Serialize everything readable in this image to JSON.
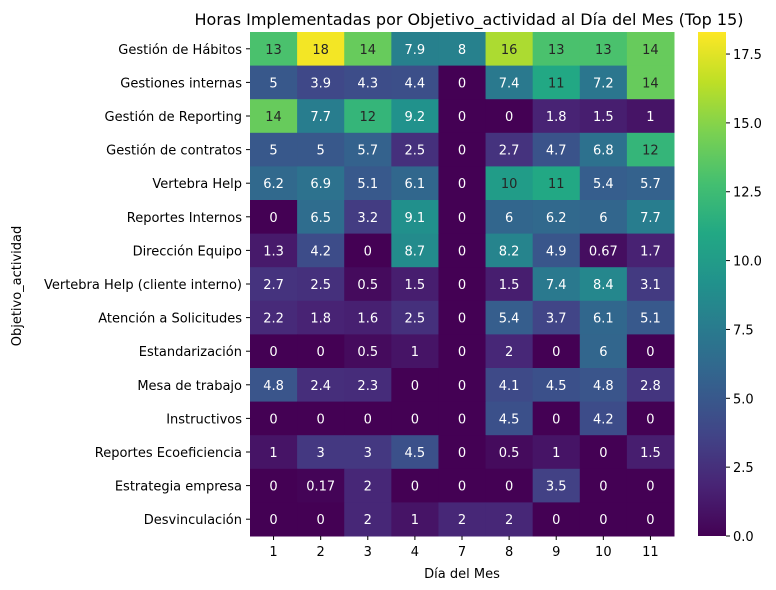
{
  "chart_data": {
    "type": "heatmap",
    "title": "Horas Implementadas por Objetivo_actividad al Día del Mes (Top 15)",
    "xlabel": "Día del Mes",
    "ylabel": "Objetivo_actividad",
    "x_categories": [
      "1",
      "2",
      "3",
      "4",
      "7",
      "8",
      "9",
      "10",
      "11"
    ],
    "y_categories": [
      "Gestión de Hábitos",
      "Gestiones internas",
      "Gestión de Reporting",
      "Gestión de contratos",
      "Vertebra Help",
      "Reportes Internos",
      "Dirección Equipo",
      "Vertebra Help (cliente interno)",
      "Atención a Solicitudes",
      "Estandarización",
      "Mesa de trabajo",
      "Instructivos",
      "Reportes Ecoeficiencia",
      "Estrategia empresa",
      "Desvinculación"
    ],
    "values": [
      [
        13,
        18,
        14,
        7.9,
        8,
        16,
        13,
        13,
        14
      ],
      [
        5,
        3.9,
        4.3,
        4.4,
        0,
        7.4,
        11,
        7.2,
        14
      ],
      [
        14,
        7.7,
        12,
        9.2,
        0,
        0,
        1.8,
        1.5,
        1
      ],
      [
        5,
        5,
        5.7,
        2.5,
        0,
        2.7,
        4.7,
        6.8,
        12
      ],
      [
        6.2,
        6.9,
        5.1,
        6.1,
        0,
        10,
        11,
        5.4,
        5.7
      ],
      [
        0,
        6.5,
        3.2,
        9.1,
        0,
        6,
        6.2,
        6,
        7.7
      ],
      [
        1.3,
        4.2,
        0,
        8.7,
        0,
        8.2,
        4.9,
        0.67,
        1.7
      ],
      [
        2.7,
        2.5,
        0.5,
        1.5,
        0,
        1.5,
        7.4,
        8.4,
        3.1
      ],
      [
        2.2,
        1.8,
        1.6,
        2.5,
        0,
        5.4,
        3.7,
        6.1,
        5.1
      ],
      [
        0,
        0,
        0.5,
        1,
        0,
        2,
        0,
        6,
        0
      ],
      [
        4.8,
        2.4,
        2.3,
        0,
        0,
        4.1,
        4.5,
        4.8,
        2.8
      ],
      [
        0,
        0,
        0,
        0,
        0,
        4.5,
        0,
        4.2,
        0
      ],
      [
        1,
        3,
        3,
        4.5,
        0,
        0.5,
        1,
        0,
        1.5
      ],
      [
        0,
        0.17,
        2,
        0,
        0,
        0,
        3.5,
        0,
        0
      ],
      [
        0,
        0,
        2,
        1,
        2,
        2,
        0,
        0,
        0
      ]
    ],
    "colormap": "viridis",
    "vmin": 0,
    "vmax": 18.3,
    "colorbar_ticks": [
      "0.0",
      "2.5",
      "5.0",
      "7.5",
      "10.0",
      "12.5",
      "15.0",
      "17.5"
    ],
    "colorbar_tick_values": [
      0,
      2.5,
      5,
      7.5,
      10,
      12.5,
      15,
      17.5
    ],
    "grid": false
  }
}
